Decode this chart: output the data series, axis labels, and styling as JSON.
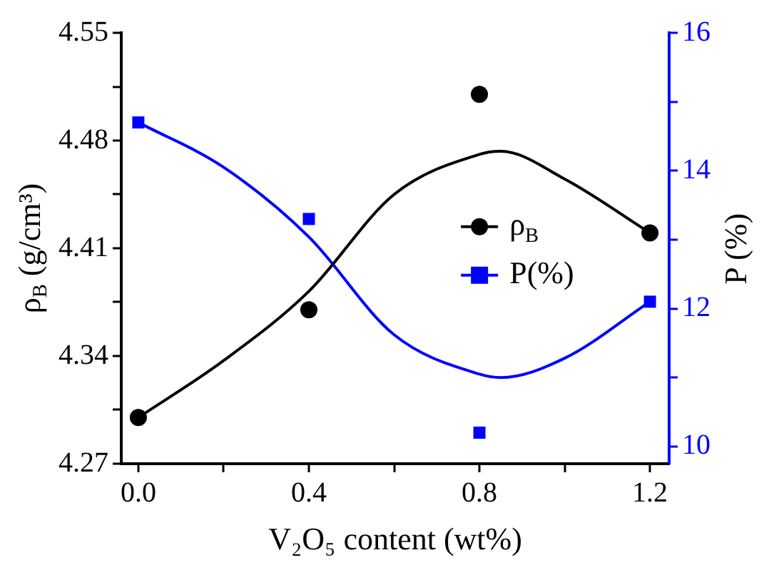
{
  "chart_data": {
    "type": "scatter",
    "xlabel": "V₂O₅ content (wt%)",
    "ylabel": "ρ$_{B}$ (g/cm³)",
    "y2label": "P (%)",
    "legend": "right",
    "xlim": [
      -0.04,
      1.245
    ],
    "xticks": [
      {
        "value": 0,
        "label": "0.0"
      },
      {
        "value": 0.2,
        "label": null
      },
      0.4,
      {
        "value": 0.6,
        "label": null
      },
      0.8,
      {
        "value": 1.0,
        "label": null
      },
      1.2
    ],
    "ylim": [
      4.27,
      4.55
    ],
    "yticks": [
      4.27,
      {
        "value": 4.305,
        "label": null
      },
      4.34,
      {
        "value": 4.375,
        "label": null
      },
      4.41,
      {
        "value": 4.445,
        "label": null
      },
      4.48,
      {
        "value": 4.515,
        "label": null
      },
      4.55
    ],
    "y2lim": [
      9.75,
      16
    ],
    "y2ticks": [
      10,
      {
        "value": 11,
        "label": null
      },
      12,
      {
        "value": 13,
        "label": null
      },
      14,
      {
        "value": 15,
        "label": null
      },
      16
    ],
    "series": [
      {
        "name": "ρ$_{B}$",
        "marker": "circle",
        "color": "#000000",
        "x": [
          0,
          0.4,
          0.8,
          1.2
        ],
        "values": [
          4.3,
          4.37,
          4.51,
          4.42
        ]
      },
      {
        "name": "P(%)",
        "marker": "square",
        "color": "#0000ff",
        "axis": "y2",
        "x": [
          0,
          0.4,
          0.8,
          1.2
        ],
        "values": [
          14.7,
          13.3,
          10.2,
          12.1
        ]
      },
      {
        "type": "line",
        "marker": "none",
        "color": "#000000",
        "x": [
          0,
          0.2,
          0.4,
          0.6,
          0.8,
          0.85,
          1.0,
          1.2
        ],
        "values": [
          4.3,
          4.337,
          4.382,
          4.445,
          4.471,
          4.473,
          4.455,
          4.42
        ]
      },
      {
        "type": "line",
        "marker": "none",
        "color": "#0000ff",
        "axis": "y2",
        "x": [
          0,
          0.2,
          0.4,
          0.6,
          0.8,
          0.85,
          1.0,
          1.2
        ],
        "values": [
          14.7,
          14.05,
          13.04,
          11.62,
          11.05,
          11.0,
          11.28,
          12.1
        ]
      }
    ]
  }
}
